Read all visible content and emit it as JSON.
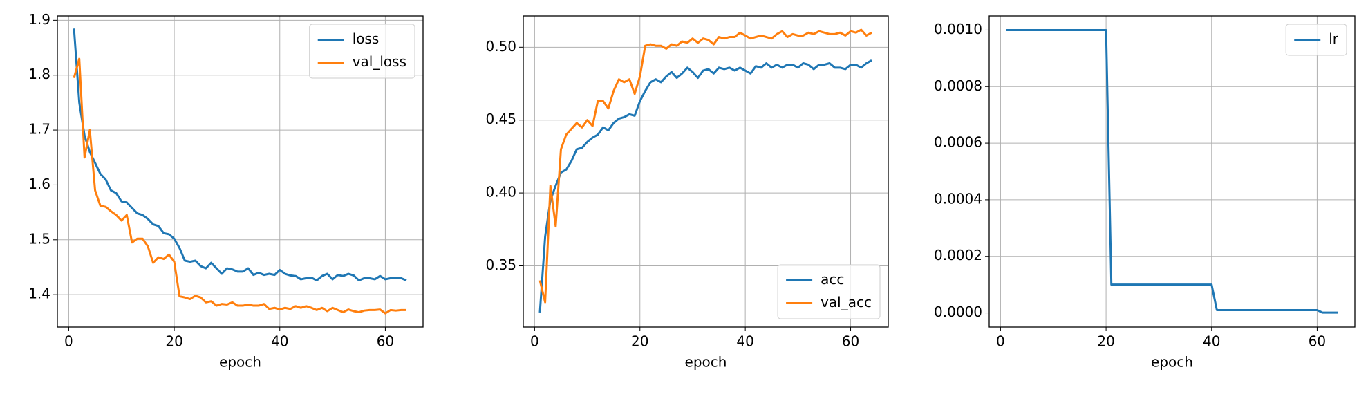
{
  "chart_data": [
    {
      "type": "line",
      "xlabel": "epoch",
      "legend": "upper right",
      "grid": true,
      "xlim": [
        -2.15,
        67.15
      ],
      "xticks": [
        0,
        20,
        40,
        60
      ],
      "ylim": [
        1.341,
        1.908
      ],
      "yticks": [
        1.4,
        1.5,
        1.6,
        1.7,
        1.8,
        1.9
      ],
      "x": [
        1,
        2,
        3,
        4,
        5,
        6,
        7,
        8,
        9,
        10,
        11,
        12,
        13,
        14,
        15,
        16,
        17,
        18,
        19,
        20,
        21,
        22,
        23,
        24,
        25,
        26,
        27,
        28,
        29,
        30,
        31,
        32,
        33,
        34,
        35,
        36,
        37,
        38,
        39,
        40,
        41,
        42,
        43,
        44,
        45,
        46,
        47,
        48,
        49,
        50,
        51,
        52,
        53,
        54,
        55,
        56,
        57,
        58,
        59,
        60,
        61,
        62,
        63,
        64
      ],
      "series": [
        {
          "name": "loss",
          "color": "#1f77b4",
          "values": [
            1.885,
            1.75,
            1.69,
            1.66,
            1.64,
            1.62,
            1.61,
            1.59,
            1.585,
            1.57,
            1.568,
            1.558,
            1.548,
            1.545,
            1.538,
            1.528,
            1.525,
            1.512,
            1.51,
            1.502,
            1.485,
            1.462,
            1.46,
            1.462,
            1.452,
            1.448,
            1.458,
            1.448,
            1.438,
            1.448,
            1.446,
            1.442,
            1.442,
            1.448,
            1.436,
            1.44,
            1.436,
            1.438,
            1.436,
            1.445,
            1.438,
            1.435,
            1.434,
            1.428,
            1.43,
            1.431,
            1.426,
            1.434,
            1.438,
            1.428,
            1.436,
            1.434,
            1.438,
            1.435,
            1.426,
            1.43,
            1.43,
            1.428,
            1.434,
            1.428,
            1.43,
            1.43,
            1.43,
            1.426
          ]
        },
        {
          "name": "val_loss",
          "color": "#ff7f0e",
          "values": [
            1.795,
            1.83,
            1.65,
            1.7,
            1.59,
            1.562,
            1.56,
            1.552,
            1.545,
            1.535,
            1.545,
            1.495,
            1.502,
            1.502,
            1.488,
            1.458,
            1.468,
            1.465,
            1.473,
            1.46,
            1.397,
            1.395,
            1.392,
            1.398,
            1.395,
            1.386,
            1.388,
            1.38,
            1.383,
            1.382,
            1.386,
            1.38,
            1.38,
            1.382,
            1.38,
            1.38,
            1.383,
            1.374,
            1.376,
            1.373,
            1.376,
            1.374,
            1.379,
            1.376,
            1.379,
            1.376,
            1.372,
            1.376,
            1.37,
            1.376,
            1.372,
            1.368,
            1.373,
            1.37,
            1.368,
            1.371,
            1.372,
            1.372,
            1.373,
            1.366,
            1.372,
            1.371,
            1.372,
            1.372
          ]
        }
      ]
    },
    {
      "type": "line",
      "xlabel": "epoch",
      "legend": "lower right",
      "grid": true,
      "xlim": [
        -2.15,
        67.15
      ],
      "xticks": [
        0,
        20,
        40,
        60
      ],
      "ylim": [
        0.308,
        0.5215
      ],
      "yticks": [
        0.35,
        {
          "value": 0.4,
          "label": "0.40"
        },
        0.45,
        {
          "value": 0.5,
          "label": "0.50"
        }
      ],
      "x": [
        1,
        2,
        3,
        4,
        5,
        6,
        7,
        8,
        9,
        10,
        11,
        12,
        13,
        14,
        15,
        16,
        17,
        18,
        19,
        20,
        21,
        22,
        23,
        24,
        25,
        26,
        27,
        28,
        29,
        30,
        31,
        32,
        33,
        34,
        35,
        36,
        37,
        38,
        39,
        40,
        41,
        42,
        43,
        44,
        45,
        46,
        47,
        48,
        49,
        50,
        51,
        52,
        53,
        54,
        55,
        56,
        57,
        58,
        59,
        60,
        61,
        62,
        63,
        64
      ],
      "series": [
        {
          "name": "acc",
          "color": "#1f77b4",
          "values": [
            0.318,
            0.37,
            0.395,
            0.405,
            0.414,
            0.416,
            0.422,
            0.43,
            0.431,
            0.435,
            0.438,
            0.44,
            0.445,
            0.443,
            0.448,
            0.451,
            0.452,
            0.454,
            0.453,
            0.463,
            0.47,
            0.476,
            0.478,
            0.476,
            0.48,
            0.483,
            0.479,
            0.482,
            0.486,
            0.483,
            0.479,
            0.484,
            0.485,
            0.482,
            0.486,
            0.485,
            0.486,
            0.484,
            0.486,
            0.484,
            0.482,
            0.487,
            0.486,
            0.489,
            0.486,
            0.488,
            0.486,
            0.488,
            0.488,
            0.486,
            0.489,
            0.488,
            0.485,
            0.488,
            0.488,
            0.489,
            0.486,
            0.486,
            0.485,
            0.488,
            0.488,
            0.486,
            0.489,
            0.491
          ]
        },
        {
          "name": "val_acc",
          "color": "#ff7f0e",
          "values": [
            0.34,
            0.325,
            0.405,
            0.377,
            0.43,
            0.44,
            0.444,
            0.448,
            0.445,
            0.45,
            0.446,
            0.463,
            0.463,
            0.458,
            0.47,
            0.478,
            0.476,
            0.478,
            0.468,
            0.48,
            0.501,
            0.502,
            0.501,
            0.501,
            0.499,
            0.502,
            0.501,
            0.504,
            0.503,
            0.506,
            0.503,
            0.506,
            0.505,
            0.502,
            0.507,
            0.506,
            0.507,
            0.507,
            0.51,
            0.508,
            0.506,
            0.507,
            0.508,
            0.507,
            0.506,
            0.509,
            0.511,
            0.507,
            0.509,
            0.508,
            0.508,
            0.51,
            0.509,
            0.511,
            0.51,
            0.509,
            0.509,
            0.51,
            0.508,
            0.511,
            0.51,
            0.512,
            0.508,
            0.51
          ]
        }
      ]
    },
    {
      "type": "line",
      "xlabel": "epoch",
      "legend": "upper right",
      "grid": true,
      "xlim": [
        -2.15,
        67.15
      ],
      "xticks": [
        0,
        20,
        40,
        60
      ],
      "ylim": [
        -5e-05,
        0.00105
      ],
      "yticks": [
        {
          "value": 0,
          "label": "0.0000"
        },
        {
          "value": 0.0002,
          "label": "0.0002"
        },
        {
          "value": 0.0004,
          "label": "0.0004"
        },
        {
          "value": 0.0006,
          "label": "0.0006"
        },
        {
          "value": 0.0008,
          "label": "0.0008"
        },
        {
          "value": 0.001,
          "label": "0.0010"
        }
      ],
      "x": [
        1,
        2,
        3,
        4,
        5,
        6,
        7,
        8,
        9,
        10,
        11,
        12,
        13,
        14,
        15,
        16,
        17,
        18,
        19,
        20,
        21,
        22,
        23,
        24,
        25,
        26,
        27,
        28,
        29,
        30,
        31,
        32,
        33,
        34,
        35,
        36,
        37,
        38,
        39,
        40,
        41,
        42,
        43,
        44,
        45,
        46,
        47,
        48,
        49,
        50,
        51,
        52,
        53,
        54,
        55,
        56,
        57,
        58,
        59,
        60,
        61,
        62,
        63,
        64
      ],
      "series": [
        {
          "name": "lr",
          "color": "#1f77b4",
          "values": [
            0.001,
            0.001,
            0.001,
            0.001,
            0.001,
            0.001,
            0.001,
            0.001,
            0.001,
            0.001,
            0.001,
            0.001,
            0.001,
            0.001,
            0.001,
            0.001,
            0.001,
            0.001,
            0.001,
            0.001,
            0.0001,
            0.0001,
            0.0001,
            0.0001,
            0.0001,
            0.0001,
            0.0001,
            0.0001,
            0.0001,
            0.0001,
            0.0001,
            0.0001,
            0.0001,
            0.0001,
            0.0001,
            0.0001,
            0.0001,
            0.0001,
            0.0001,
            0.0001,
            1e-05,
            1e-05,
            1e-05,
            1e-05,
            1e-05,
            1e-05,
            1e-05,
            1e-05,
            1e-05,
            1e-05,
            1e-05,
            1e-05,
            1e-05,
            1e-05,
            1e-05,
            1e-05,
            1e-05,
            1e-05,
            1e-05,
            1e-05,
            1e-06,
            1e-06,
            1e-06,
            1e-06
          ]
        }
      ]
    }
  ]
}
